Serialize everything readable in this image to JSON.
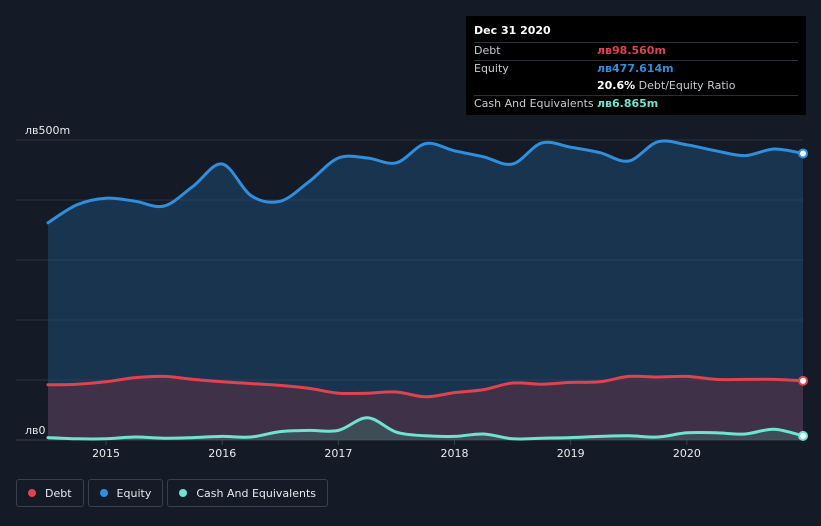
{
  "tooltip": {
    "date": "Dec 31 2020",
    "rows": [
      {
        "label": "Debt",
        "value": "лв98.560m",
        "color": "#e0424f"
      },
      {
        "label": "Equity",
        "value": "лв477.614m",
        "color": "#2f8fde"
      },
      {
        "label": "",
        "value": "20.6%",
        "suffix": " Debt/Equity Ratio",
        "color": "#ffffff"
      },
      {
        "label": "Cash And Equivalents",
        "value": "лв6.865m",
        "color": "#6fe3cf"
      }
    ]
  },
  "legend": [
    {
      "label": "Debt",
      "color": "#e0424f"
    },
    {
      "label": "Equity",
      "color": "#2f8fde"
    },
    {
      "label": "Cash And Equivalents",
      "color": "#6fe3cf"
    }
  ],
  "chart_data": {
    "type": "area",
    "y_tick_labels": [
      "лв0",
      "лв500m"
    ],
    "ylim": [
      0,
      500
    ],
    "x_tick_labels": [
      "2015",
      "2016",
      "2017",
      "2018",
      "2019",
      "2020"
    ],
    "xlim": [
      2014.5,
      2021.0
    ],
    "grid": true,
    "legend_position": "bottom-left",
    "series": [
      {
        "name": "Equity",
        "color": "#2f8fde",
        "points": [
          [
            2014.5,
            362
          ],
          [
            2014.75,
            392
          ],
          [
            2015.0,
            403
          ],
          [
            2015.25,
            398
          ],
          [
            2015.5,
            390
          ],
          [
            2015.75,
            423
          ],
          [
            2016.0,
            460
          ],
          [
            2016.25,
            407
          ],
          [
            2016.5,
            398
          ],
          [
            2016.75,
            431
          ],
          [
            2017.0,
            470
          ],
          [
            2017.25,
            470
          ],
          [
            2017.5,
            462
          ],
          [
            2017.75,
            494
          ],
          [
            2018.0,
            482
          ],
          [
            2018.25,
            472
          ],
          [
            2018.5,
            460
          ],
          [
            2018.75,
            495
          ],
          [
            2019.0,
            488
          ],
          [
            2019.25,
            479
          ],
          [
            2019.5,
            465
          ],
          [
            2019.75,
            497
          ],
          [
            2020.0,
            492
          ],
          [
            2020.25,
            482
          ],
          [
            2020.5,
            474
          ],
          [
            2020.75,
            485
          ],
          [
            2021.0,
            477.6
          ]
        ]
      },
      {
        "name": "Debt",
        "color": "#e0424f",
        "points": [
          [
            2014.5,
            92
          ],
          [
            2014.75,
            93
          ],
          [
            2015.0,
            97
          ],
          [
            2015.25,
            104
          ],
          [
            2015.5,
            106
          ],
          [
            2015.75,
            101
          ],
          [
            2016.0,
            97
          ],
          [
            2016.25,
            94
          ],
          [
            2016.5,
            91
          ],
          [
            2016.75,
            86
          ],
          [
            2017.0,
            78
          ],
          [
            2017.25,
            78
          ],
          [
            2017.5,
            80
          ],
          [
            2017.75,
            72
          ],
          [
            2018.0,
            79
          ],
          [
            2018.25,
            84
          ],
          [
            2018.5,
            95
          ],
          [
            2018.75,
            93
          ],
          [
            2019.0,
            96
          ],
          [
            2019.25,
            97
          ],
          [
            2019.5,
            106
          ],
          [
            2019.75,
            105
          ],
          [
            2020.0,
            106
          ],
          [
            2020.25,
            101
          ],
          [
            2020.5,
            101
          ],
          [
            2020.75,
            101
          ],
          [
            2021.0,
            98.6
          ]
        ]
      },
      {
        "name": "Cash And Equivalents",
        "color": "#6fe3cf",
        "points": [
          [
            2014.5,
            4
          ],
          [
            2014.75,
            2
          ],
          [
            2015.0,
            2
          ],
          [
            2015.25,
            5
          ],
          [
            2015.5,
            3
          ],
          [
            2015.75,
            4
          ],
          [
            2016.0,
            6
          ],
          [
            2016.25,
            5
          ],
          [
            2016.5,
            14
          ],
          [
            2016.75,
            16
          ],
          [
            2017.0,
            16
          ],
          [
            2017.25,
            37
          ],
          [
            2017.5,
            13
          ],
          [
            2017.75,
            7
          ],
          [
            2018.0,
            6
          ],
          [
            2018.25,
            10
          ],
          [
            2018.5,
            2
          ],
          [
            2018.75,
            3
          ],
          [
            2019.0,
            4
          ],
          [
            2019.25,
            6
          ],
          [
            2019.5,
            7
          ],
          [
            2019.75,
            5
          ],
          [
            2020.0,
            12
          ],
          [
            2020.25,
            12
          ],
          [
            2020.5,
            10
          ],
          [
            2020.75,
            18
          ],
          [
            2021.0,
            6.9
          ]
        ]
      }
    ]
  }
}
